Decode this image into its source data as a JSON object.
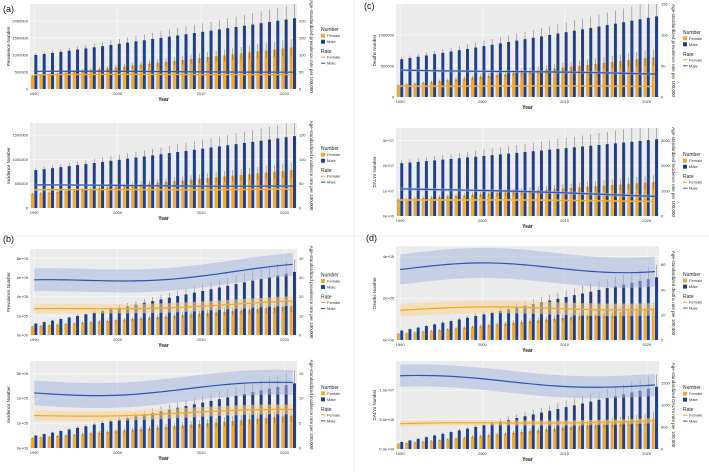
{
  "colors": {
    "female": "#f0a830",
    "male": "#1f3f8f",
    "rate_female": "#f5a623",
    "rate_male": "#2b55b0",
    "ci_female": "#f7d58f",
    "ci_male": "#a9b8df"
  },
  "panel_labels": {
    "a": "(a)",
    "b": "(b)",
    "c": "(c)",
    "d": "(d)"
  },
  "legend": {
    "number_title": "Number",
    "rate_title": "Rate",
    "female": "Female",
    "male": "Male"
  },
  "chart_data": [
    {
      "id": "a1",
      "type": "bar",
      "panel": "a",
      "title": "",
      "xlabel": "Year",
      "ylabel": "Prevalence Number",
      "y2label": "Age-standardized prevalence rate per 100,000",
      "x_start": 1990,
      "x_end": 2021,
      "xticks": [
        "1990",
        "2000",
        "2010",
        "2020"
      ],
      "ylim": [
        0,
        2500000
      ],
      "yticks": [
        0,
        500000,
        1000000,
        1500000,
        2000000
      ],
      "ytick_labels": [
        "0",
        "500000",
        "1000000",
        "1500000",
        "2000000"
      ],
      "y2lim": [
        0,
        250
      ],
      "y2ticks": [
        0,
        50,
        100,
        150,
        200
      ],
      "y2tick_labels": [
        "0",
        "50",
        "100",
        "150",
        "200"
      ],
      "series": [
        {
          "name": "Female",
          "kind": "number",
          "start": 380000,
          "end": 1220000
        },
        {
          "name": "Male",
          "kind": "number",
          "start": 1000000,
          "end": 2080000
        },
        {
          "name": "Female",
          "kind": "rate",
          "start": 42,
          "end": 43,
          "ci": 2
        },
        {
          "name": "Male",
          "kind": "rate",
          "start": 52,
          "end": 50,
          "ci": 2
        }
      ]
    },
    {
      "id": "a2",
      "type": "bar",
      "panel": "a",
      "title": "",
      "xlabel": "Year",
      "ylabel": "Incidence Number",
      "y2label": "Age-standardized incidence rate per 100,000",
      "x_start": 1990,
      "x_end": 2021,
      "xticks": [
        "1990",
        "2000",
        "2010",
        "2020"
      ],
      "ylim": [
        0,
        1750000
      ],
      "yticks": [
        0,
        500000,
        1000000,
        1500000
      ],
      "ytick_labels": [
        "0",
        "500000",
        "1000000",
        "1500000"
      ],
      "y2lim": [
        0,
        175
      ],
      "y2ticks": [
        0,
        50,
        100,
        150
      ],
      "y2tick_labels": [
        "0",
        "50",
        "100",
        "150"
      ],
      "series": [
        {
          "name": "Female",
          "kind": "number",
          "start": 290000,
          "end": 780000
        },
        {
          "name": "Male",
          "kind": "number",
          "start": 780000,
          "end": 1480000
        },
        {
          "name": "Female",
          "kind": "rate",
          "start": 37,
          "end": 39,
          "ci": 2
        },
        {
          "name": "Male",
          "kind": "rate",
          "start": 47,
          "end": 45,
          "ci": 2
        }
      ]
    },
    {
      "id": "b1",
      "type": "bar",
      "panel": "b",
      "title": "",
      "xlabel": "Year",
      "ylabel": "Prevalence Number",
      "y2label": "Age-standardized prevalence rate per 100,000",
      "x_start": 1990,
      "x_end": 2021,
      "xticks": [
        "1990",
        "2000",
        "2010",
        "2020"
      ],
      "ylim": [
        0,
        900000
      ],
      "yticks": [
        0,
        200000,
        400000,
        600000,
        800000
      ],
      "ytick_labels": [
        "0e+00",
        "2e+05",
        "4e+05",
        "6e+05",
        "8e+05"
      ],
      "y2lim": [
        0,
        45
      ],
      "y2ticks": [
        0,
        10,
        20,
        30,
        40
      ],
      "y2tick_labels": [
        "0",
        "10",
        "20",
        "30",
        "40"
      ],
      "series": [
        {
          "name": "Female",
          "kind": "number",
          "start": 90000,
          "end": 300000
        },
        {
          "name": "Male",
          "kind": "number",
          "start": 120000,
          "end": 660000
        },
        {
          "name": "Female",
          "kind": "rate",
          "start": 13,
          "end": 17,
          "ci": 2.5
        },
        {
          "name": "Male",
          "kind": "rate",
          "start": 27,
          "end": 35,
          "ci": 6
        }
      ]
    },
    {
      "id": "b2",
      "type": "bar",
      "panel": "b",
      "title": "",
      "xlabel": "Year",
      "ylabel": "Incidence Number",
      "y2label": "Age-standardized incidence rate per 100,000",
      "x_start": 1990,
      "x_end": 2021,
      "xticks": [
        "1990",
        "2000",
        "2010",
        "2020"
      ],
      "ylim": [
        0,
        350000
      ],
      "yticks": [
        0,
        100000,
        200000,
        300000
      ],
      "ytick_labels": [
        "0e+00",
        "1e+05",
        "2e+05",
        "3e+05"
      ],
      "y2lim": [
        0,
        17.5
      ],
      "y2ticks": [
        0,
        5,
        10,
        15
      ],
      "y2tick_labels": [
        "0",
        "5",
        "10",
        "15"
      ],
      "series": [
        {
          "name": "Female",
          "kind": "number",
          "start": 40000,
          "end": 130000
        },
        {
          "name": "Male",
          "kind": "number",
          "start": 50000,
          "end": 260000
        },
        {
          "name": "Female",
          "kind": "rate",
          "start": 6.5,
          "end": 7.5,
          "ci": 1
        },
        {
          "name": "Male",
          "kind": "rate",
          "start": 11,
          "end": 12.5,
          "ci": 2.5
        }
      ]
    },
    {
      "id": "c1",
      "type": "bar",
      "panel": "c",
      "title": "",
      "xlabel": "Year",
      "ylabel": "Deaths Number",
      "y2label": "Age-standardized prevalence rate per 100,000",
      "x_start": 1990,
      "x_end": 2021,
      "xticks": [
        "1990",
        "2000",
        "2010",
        "2020"
      ],
      "ylim": [
        0,
        1500000
      ],
      "yticks": [
        0,
        500000,
        1000000
      ],
      "ytick_labels": [
        "0",
        "500000",
        "1000000"
      ],
      "y2lim": [
        0,
        150
      ],
      "y2ticks": [
        0,
        50,
        100,
        150
      ],
      "y2tick_labels": [
        "0",
        "50",
        "100",
        "150"
      ],
      "series": [
        {
          "name": "Female",
          "kind": "number",
          "start": 190000,
          "end": 640000
        },
        {
          "name": "Male",
          "kind": "number",
          "start": 610000,
          "end": 1300000
        },
        {
          "name": "Female",
          "kind": "rate",
          "start": 18,
          "end": 17,
          "ci": 1.5
        },
        {
          "name": "Male",
          "kind": "rate",
          "start": 44,
          "end": 37,
          "ci": 2
        }
      ]
    },
    {
      "id": "c2",
      "type": "bar",
      "panel": "c",
      "title": "",
      "xlabel": "Year",
      "ylabel": "DALYs Number",
      "y2label": "Age-standardized incidence rate per 100,000",
      "x_start": 1990,
      "x_end": 2021,
      "xticks": [
        "1990",
        "2000",
        "2010",
        "2020"
      ],
      "ylim": [
        0,
        35000000
      ],
      "yticks": [
        0,
        10000000,
        20000000,
        30000000
      ],
      "ytick_labels": [
        "0e+00",
        "1e+07",
        "2e+07",
        "3e+07"
      ],
      "y2lim": [
        0,
        3500
      ],
      "y2ticks": [
        0,
        1000,
        2000,
        3000
      ],
      "y2tick_labels": [
        "0",
        "1000",
        "2000",
        "3000"
      ],
      "series": [
        {
          "name": "Female",
          "kind": "number",
          "start": 6500000,
          "end": 13500000
        },
        {
          "name": "Male",
          "kind": "number",
          "start": 21000000,
          "end": 30500000
        },
        {
          "name": "Female",
          "kind": "rate",
          "start": 650,
          "end": 590,
          "ci": 40
        },
        {
          "name": "Male",
          "kind": "rate",
          "start": 1100,
          "end": 800,
          "ci": 60
        }
      ]
    },
    {
      "id": "d1",
      "type": "bar",
      "panel": "d",
      "title": "",
      "xlabel": "Year",
      "ylabel": "Deaths Number",
      "y2label": "Age-standardized deaths rate per 100,000",
      "x_start": 1990,
      "x_end": 2021,
      "xticks": [
        "1990",
        "2000",
        "2010",
        "2020"
      ],
      "ylim": [
        0,
        450000
      ],
      "yticks": [
        0,
        200000,
        400000
      ],
      "ytick_labels": [
        "0e+00",
        "2e+05",
        "4e+05"
      ],
      "y2lim": [
        0,
        75
      ],
      "y2ticks": [
        0,
        20,
        40,
        60
      ],
      "y2tick_labels": [
        "0",
        "20",
        "40",
        "60"
      ],
      "series": [
        {
          "name": "Female",
          "kind": "number",
          "start": 30000,
          "end": 150000
        },
        {
          "name": "Male",
          "kind": "number",
          "start": 45000,
          "end": 300000
        },
        {
          "name": "Female",
          "kind": "rate",
          "start": 24,
          "end": 26,
          "ci": 5
        },
        {
          "name": "Male",
          "kind": "rate",
          "start": 57,
          "end": 58,
          "ci": 12
        }
      ]
    },
    {
      "id": "d2",
      "type": "bar",
      "panel": "d",
      "title": "",
      "xlabel": "Year",
      "ylabel": "DALYs Number",
      "y2label": "Age-standardized DALYs rate per 100,000",
      "x_start": 1990,
      "x_end": 2021,
      "xticks": [
        "1990",
        "2000",
        "2010",
        "2020"
      ],
      "ylim": [
        0,
        15000000
      ],
      "yticks": [
        0,
        5000000,
        10000000
      ],
      "ytick_labels": [
        "0.0e+00",
        "5.0e+06",
        "1.0e+07"
      ],
      "y2lim": [
        0,
        2000
      ],
      "y2ticks": [
        0,
        500,
        1000,
        1500
      ],
      "y2tick_labels": [
        "0",
        "500",
        "1000",
        "1500"
      ],
      "series": [
        {
          "name": "Female",
          "kind": "number",
          "start": 900000,
          "end": 5200000
        },
        {
          "name": "Male",
          "kind": "number",
          "start": 1200000,
          "end": 10600000
        },
        {
          "name": "Female",
          "kind": "rate",
          "start": 560,
          "end": 640,
          "ci": 60
        },
        {
          "name": "Male",
          "kind": "rate",
          "start": 1600,
          "end": 1450,
          "ci": 250
        }
      ]
    }
  ]
}
